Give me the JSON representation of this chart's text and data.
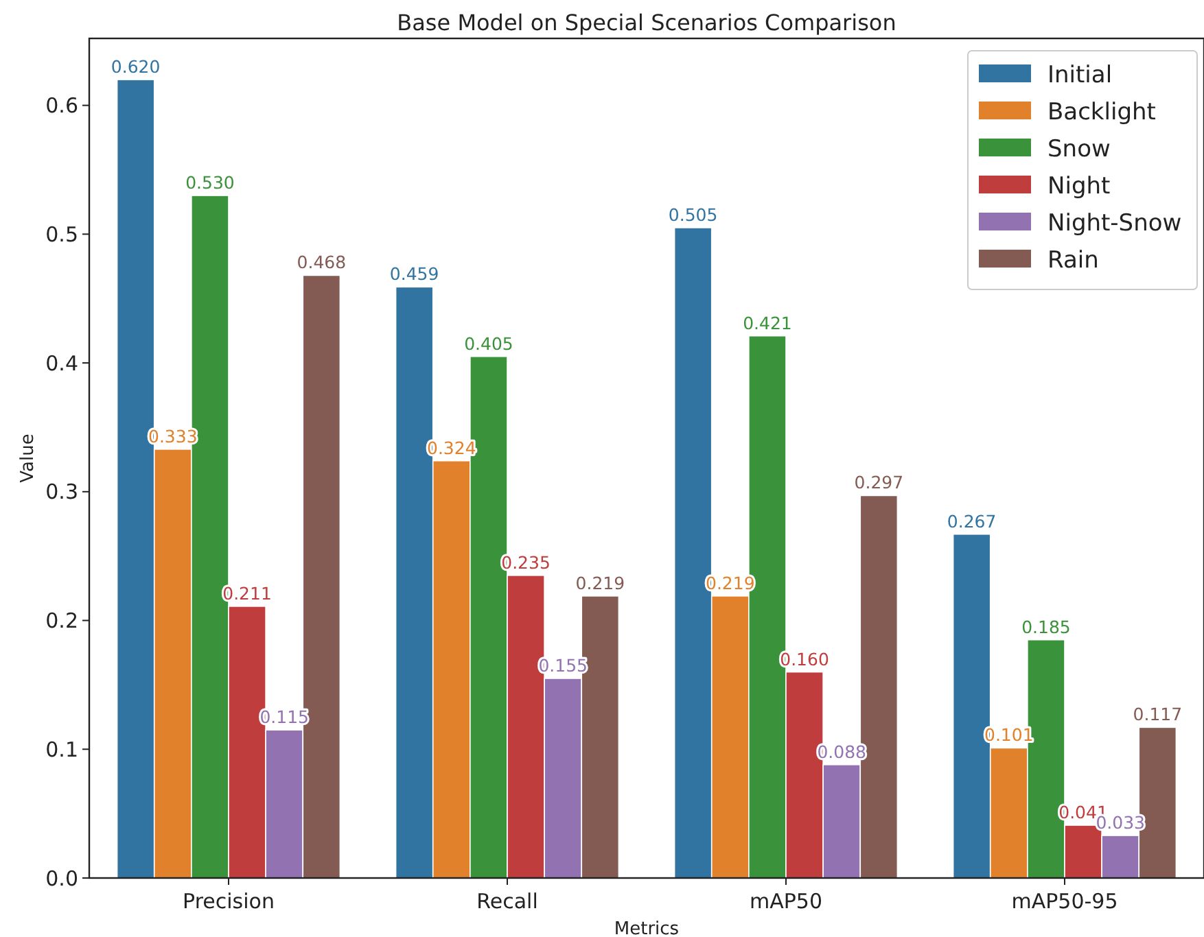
{
  "chart_data": {
    "type": "bar",
    "title": "Base Model on Special Scenarios Comparison",
    "xlabel": "Metrics",
    "ylabel": "Value",
    "categories": [
      "Precision",
      "Recall",
      "mAP50",
      "mAP50-95"
    ],
    "series": [
      {
        "name": "Initial",
        "color": "#3274a1",
        "values": [
          0.62,
          0.459,
          0.505,
          0.267
        ],
        "value_labels": [
          "0.620",
          "0.459",
          "0.505",
          "0.267"
        ]
      },
      {
        "name": "Backlight",
        "color": "#e1812c",
        "values": [
          0.333,
          0.324,
          0.219,
          0.101
        ],
        "value_labels": [
          "0.333",
          "0.324",
          "0.219",
          "0.101"
        ]
      },
      {
        "name": "Snow",
        "color": "#3a923a",
        "values": [
          0.53,
          0.405,
          0.421,
          0.185
        ],
        "value_labels": [
          "0.530",
          "0.405",
          "0.421",
          "0.185"
        ]
      },
      {
        "name": "Night",
        "color": "#c03d3e",
        "values": [
          0.211,
          0.235,
          0.16,
          0.041
        ],
        "value_labels": [
          "0.211",
          "0.235",
          "0.160",
          "0.041"
        ]
      },
      {
        "name": "Night-Snow",
        "color": "#9372b2",
        "values": [
          0.115,
          0.155,
          0.088,
          0.033
        ],
        "value_labels": [
          "0.115",
          "0.155",
          "0.088",
          "0.033"
        ]
      },
      {
        "name": "Rain",
        "color": "#845b53",
        "values": [
          0.468,
          0.219,
          0.297,
          0.117
        ],
        "value_labels": [
          "0.468",
          "0.219",
          "0.297",
          "0.117"
        ]
      }
    ],
    "ylim": [
      0,
      0.652
    ],
    "yticks": [
      {
        "value": 0,
        "label": "0.0"
      },
      {
        "value": 0.1,
        "label": "0.1"
      },
      {
        "value": 0.2,
        "label": "0.2"
      },
      {
        "value": 0.3,
        "label": "0.3"
      },
      {
        "value": 0.4,
        "label": "0.4"
      },
      {
        "value": 0.5,
        "label": "0.5"
      },
      {
        "value": 0.6,
        "label": "0.6"
      }
    ],
    "legend": "top right",
    "grid": false
  }
}
